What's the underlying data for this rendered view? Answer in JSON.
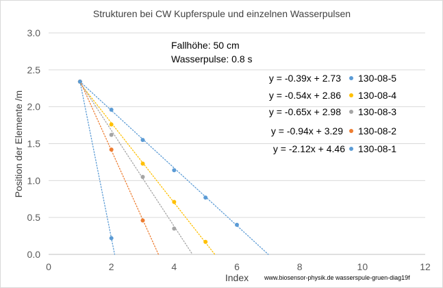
{
  "chart_data": {
    "type": "scatter",
    "title": "Strukturen bei CW Kupferspule und einzelnen Wasserpulsen",
    "xlabel": "Index",
    "ylabel": "Position der Elemente /m",
    "xlim": [
      0,
      12
    ],
    "ylim": [
      0,
      3.0
    ],
    "x_ticks": [
      "0",
      "2",
      "4",
      "6",
      "8",
      "10",
      "12"
    ],
    "y_ticks": [
      "0.0",
      "0.5",
      "1.0",
      "1.5",
      "2.0",
      "2.5",
      "3.0"
    ],
    "grid": "horizontal",
    "legend_position": "right",
    "annotations": [
      "Fallhöhe: 50 cm",
      "Wasserpulse: 0.8 s"
    ],
    "footer": "www.biosensor-physik.de  wasserspule-gruen-diag19f",
    "series": [
      {
        "name": "130-08-5",
        "color": "#5b9bd5",
        "equation": "y = -0.39x + 2.73",
        "slope": -0.39,
        "intercept": 2.73,
        "points": [
          [
            1,
            2.34
          ],
          [
            2,
            1.96
          ],
          [
            3,
            1.55
          ],
          [
            4,
            1.14
          ],
          [
            5,
            0.77
          ],
          [
            6,
            0.4
          ]
        ]
      },
      {
        "name": "130-08-4",
        "color": "#ffc000",
        "equation": "y = -0.54x + 2.86",
        "slope": -0.54,
        "intercept": 2.86,
        "points": [
          [
            1,
            2.34
          ],
          [
            2,
            1.76
          ],
          [
            3,
            1.23
          ],
          [
            4,
            0.71
          ],
          [
            5,
            0.17
          ]
        ]
      },
      {
        "name": "130-08-3",
        "color": "#a5a5a5",
        "equation": "y = -0.65x + 2.98",
        "slope": -0.65,
        "intercept": 2.98,
        "points": [
          [
            1,
            2.34
          ],
          [
            2,
            1.62
          ],
          [
            3,
            1.05
          ],
          [
            4,
            0.35
          ]
        ]
      },
      {
        "name": "130-08-2",
        "color": "#ed7d31",
        "equation": "y = -0.94x + 3.29",
        "slope": -0.94,
        "intercept": 3.29,
        "points": [
          [
            1,
            2.34
          ],
          [
            2,
            1.42
          ],
          [
            3,
            0.46
          ]
        ]
      },
      {
        "name": "130-08-1",
        "color": "#5b9bd5",
        "equation": "y = -2.12x + 4.46",
        "slope": -2.12,
        "intercept": 4.46,
        "points": [
          [
            1,
            2.34
          ],
          [
            2,
            0.22
          ]
        ]
      }
    ]
  }
}
